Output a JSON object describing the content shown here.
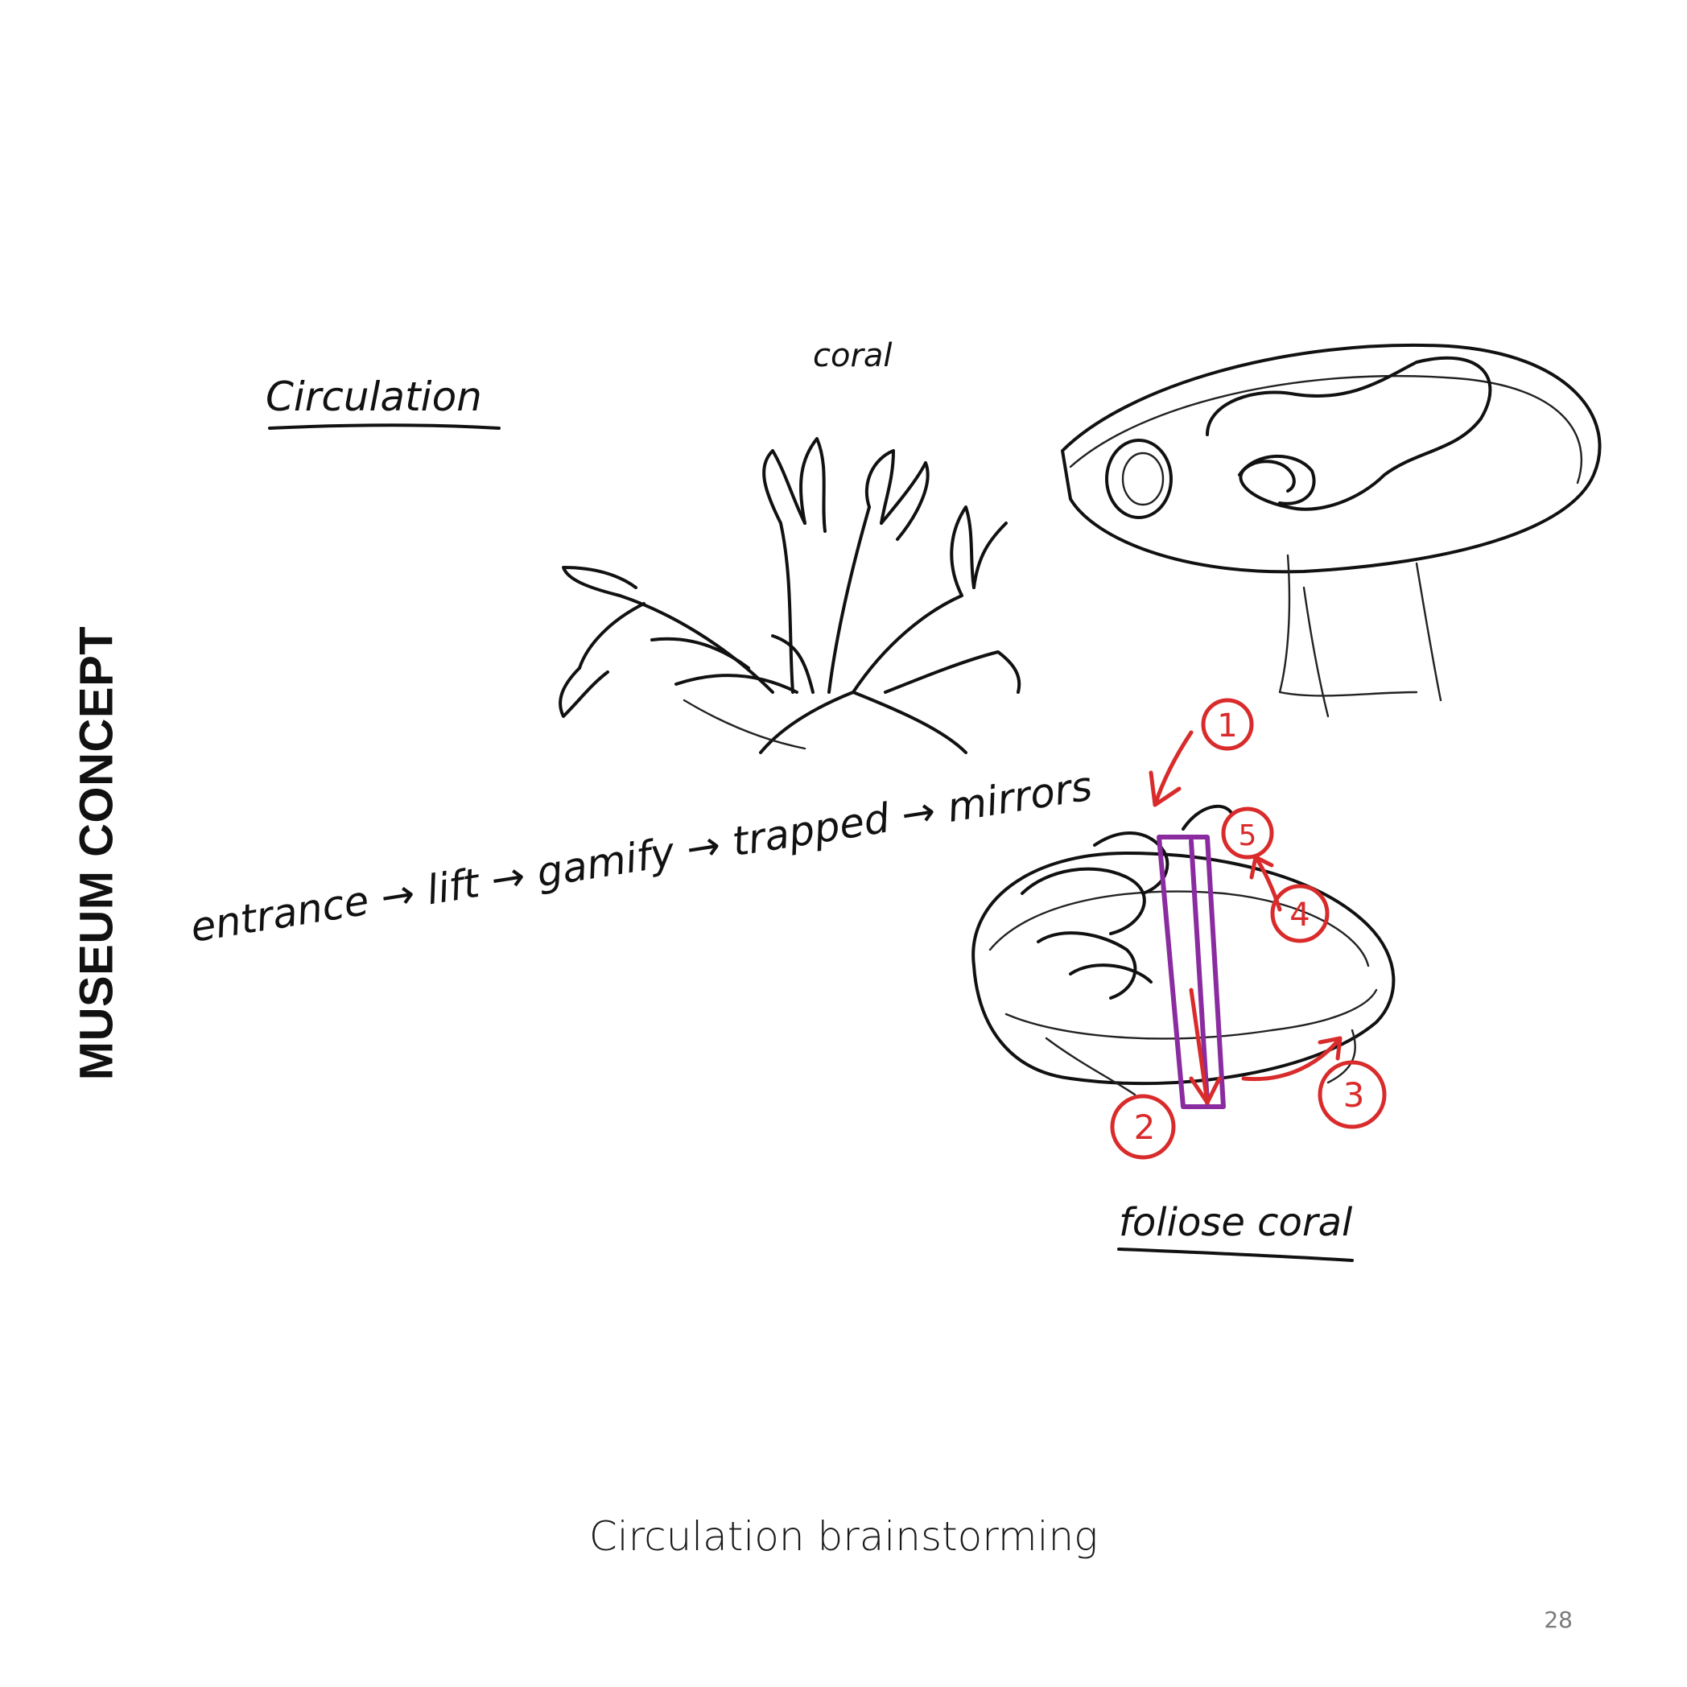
{
  "section_title": "MUSEUM CONCEPT",
  "caption": "Circulation brainstorming",
  "page_number": "28",
  "handwritten": {
    "circulation_label": "Circulation",
    "coral_label": "coral",
    "flow_note": "entrance → lift → gamify → trapped → mirrors",
    "foliose_label": "foliose coral",
    "step_numbers": [
      "1",
      "2",
      "3",
      "4",
      "5"
    ]
  },
  "colors": {
    "ink": "#111111",
    "annotation_red": "#d92b2b",
    "lift_purple": "#8a2ca0",
    "page_number_gray": "#7a7a7a"
  }
}
